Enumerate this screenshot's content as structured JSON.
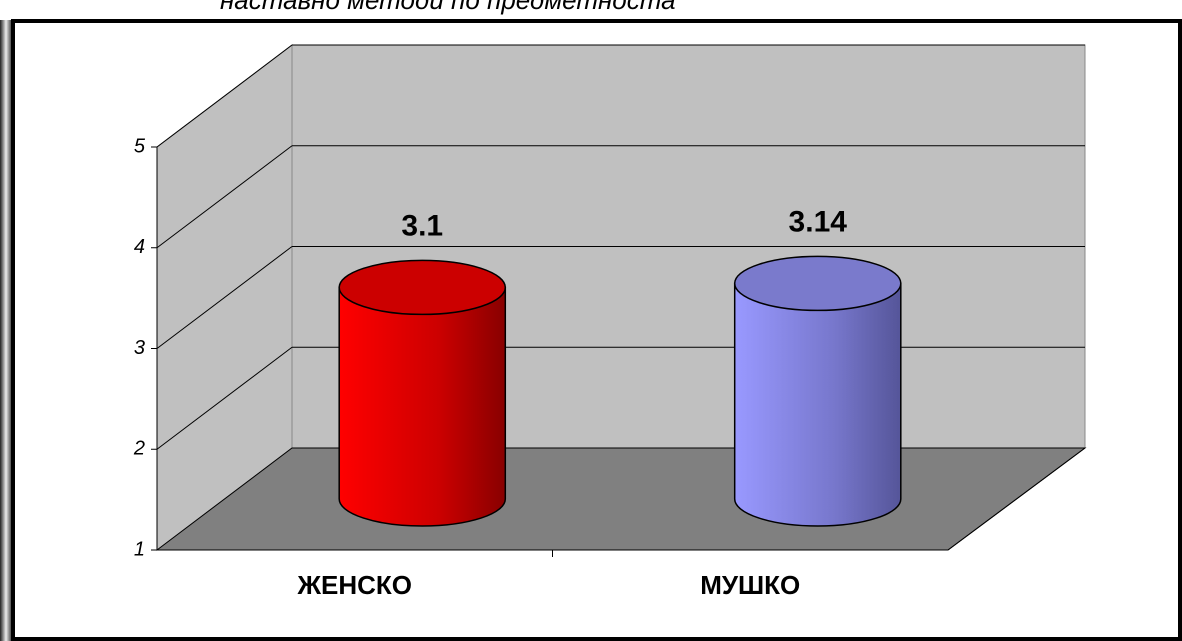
{
  "chart_data": {
    "type": "bar3d",
    "title": "наставно методи по предметноста",
    "categories": [
      "ЖЕНСКО",
      "МУШКО"
    ],
    "series": [
      {
        "name": null,
        "colors": [
          "#ff0000",
          "#9999ff"
        ],
        "values": [
          3.1,
          3.14
        ]
      }
    ],
    "ylim": [
      1,
      5
    ],
    "yticks": [
      1,
      2,
      3,
      4,
      5
    ],
    "grid": true
  }
}
